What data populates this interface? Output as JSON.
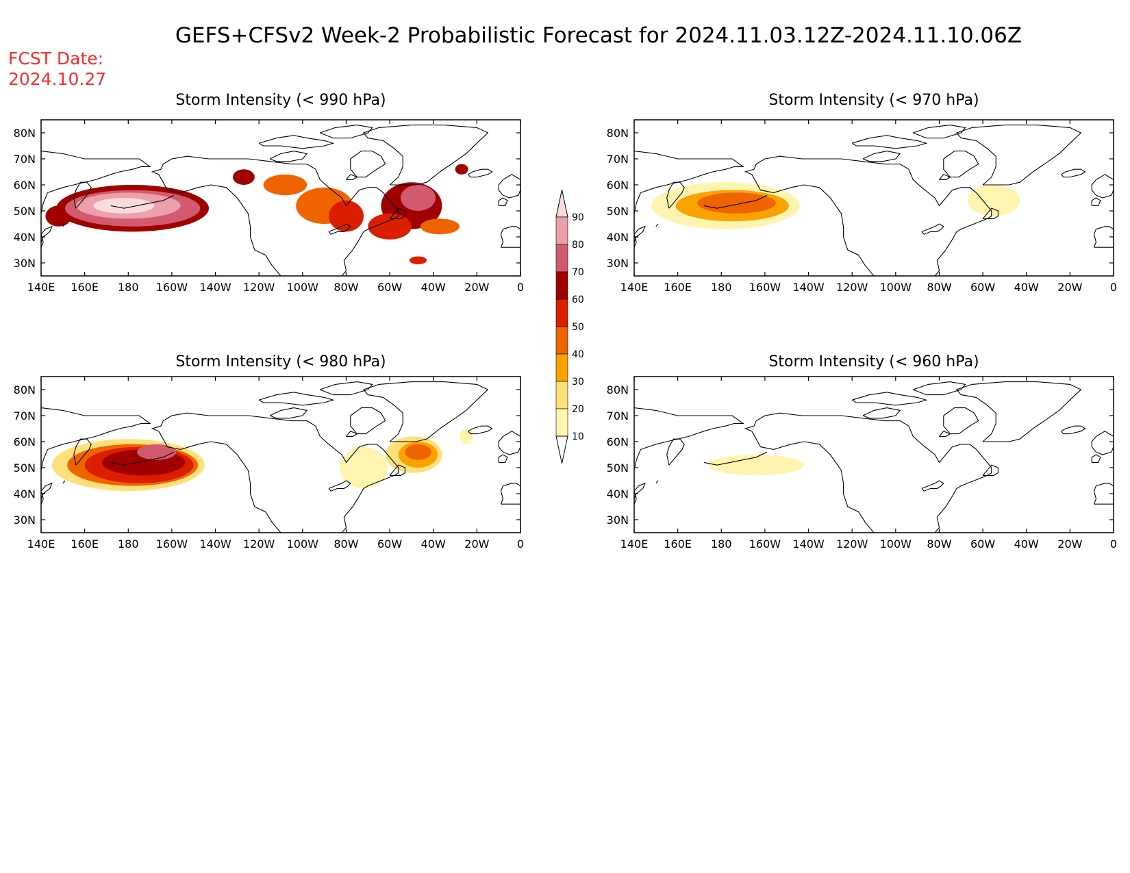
{
  "main_title": "GEFS+CFSv2 Week-2 Probabilistic Forecast for 2024.11.03.12Z-2024.11.10.06Z",
  "fcst_label": "FCST Date:",
  "fcst_date": "2024.10.27",
  "colors": {
    "text": "#000000",
    "fcst_text": "#ff2a2a",
    "coast": "#000000"
  },
  "lon_labels": [
    "140E",
    "160E",
    "180",
    "160W",
    "140W",
    "120W",
    "100W",
    "80W",
    "60W",
    "40W",
    "20W",
    "0"
  ],
  "lat_labels": [
    "80N",
    "70N",
    "60N",
    "50N",
    "40N",
    "30N"
  ],
  "colorbar": {
    "labels": [
      "10",
      "20",
      "30",
      "40",
      "50",
      "60",
      "70",
      "80",
      "90"
    ],
    "colors": [
      "#ffffff",
      "#fff5b0",
      "#ffe07a",
      "#f9a200",
      "#f06400",
      "#dc1e00",
      "#a00000",
      "#d25a6e",
      "#eba0aa",
      "#fadcdc"
    ]
  },
  "panels": [
    {
      "id": "p990",
      "title": "Storm Intensity (< 990 hPa)",
      "blobs": [
        {
          "lon": 148,
          "lat": 48,
          "rx": 6,
          "ry": 4,
          "level": 6
        },
        {
          "lon": 182,
          "lat": 51,
          "rx": 35,
          "ry": 9,
          "level": 6
        },
        {
          "lon": 182,
          "lat": 51,
          "rx": 31,
          "ry": 7,
          "level": 7
        },
        {
          "lon": 180,
          "lat": 52,
          "rx": 24,
          "ry": 5,
          "level": 8
        },
        {
          "lon": 178,
          "lat": 52,
          "rx": 14,
          "ry": 3,
          "level": 9
        },
        {
          "lon": 233,
          "lat": 63,
          "rx": 5,
          "ry": 3,
          "level": 6
        },
        {
          "lon": 252,
          "lat": 60,
          "rx": 10,
          "ry": 4,
          "level": 4
        },
        {
          "lon": 270,
          "lat": 52,
          "rx": 13,
          "ry": 7,
          "level": 4
        },
        {
          "lon": 280,
          "lat": 48,
          "rx": 8,
          "ry": 6,
          "level": 5
        },
        {
          "lon": 310,
          "lat": 52,
          "rx": 14,
          "ry": 9,
          "level": 6
        },
        {
          "lon": 313,
          "lat": 55,
          "rx": 8,
          "ry": 5,
          "level": 7
        },
        {
          "lon": 300,
          "lat": 44,
          "rx": 10,
          "ry": 5,
          "level": 5
        },
        {
          "lon": 323,
          "lat": 44,
          "rx": 9,
          "ry": 3,
          "level": 4
        },
        {
          "lon": 333,
          "lat": 66,
          "rx": 3,
          "ry": 2,
          "level": 6
        },
        {
          "lon": 313,
          "lat": 31,
          "rx": 4,
          "ry": 1.5,
          "level": 5
        }
      ]
    },
    {
      "id": "p970",
      "title": "Storm Intensity (< 970 hPa)",
      "blobs": [
        {
          "lon": 182,
          "lat": 52,
          "rx": 34,
          "ry": 9,
          "level": 1
        },
        {
          "lon": 185,
          "lat": 52,
          "rx": 26,
          "ry": 6,
          "level": 3
        },
        {
          "lon": 187,
          "lat": 53,
          "rx": 18,
          "ry": 4,
          "level": 4
        },
        {
          "lon": 305,
          "lat": 54,
          "rx": 12,
          "ry": 6,
          "level": 1
        }
      ]
    },
    {
      "id": "p980",
      "title": "Storm Intensity (< 980 hPa)",
      "blobs": [
        {
          "lon": 180,
          "lat": 51,
          "rx": 35,
          "ry": 10,
          "level": 2
        },
        {
          "lon": 182,
          "lat": 51,
          "rx": 30,
          "ry": 8,
          "level": 4
        },
        {
          "lon": 185,
          "lat": 51,
          "rx": 25,
          "ry": 7,
          "level": 5
        },
        {
          "lon": 187,
          "lat": 52,
          "rx": 19,
          "ry": 5,
          "level": 6
        },
        {
          "lon": 193,
          "lat": 56,
          "rx": 9,
          "ry": 3,
          "level": 7
        },
        {
          "lon": 288,
          "lat": 50,
          "rx": 11,
          "ry": 8,
          "level": 1
        },
        {
          "lon": 311,
          "lat": 55,
          "rx": 13,
          "ry": 7,
          "level": 2
        },
        {
          "lon": 313,
          "lat": 55,
          "rx": 9,
          "ry": 5,
          "level": 3
        },
        {
          "lon": 313,
          "lat": 56,
          "rx": 6,
          "ry": 3,
          "level": 4
        },
        {
          "lon": 335,
          "lat": 62,
          "rx": 3,
          "ry": 3,
          "level": 1
        }
      ]
    },
    {
      "id": "p960",
      "title": "Storm Intensity (< 960 hPa)",
      "blobs": [
        {
          "lon": 196,
          "lat": 51,
          "rx": 22,
          "ry": 4,
          "level": 1
        }
      ]
    }
  ]
}
